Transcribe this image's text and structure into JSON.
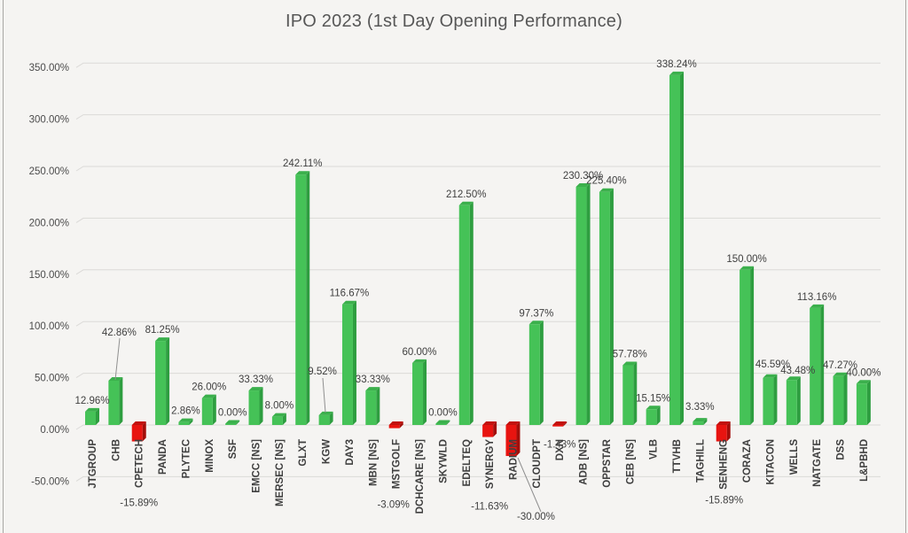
{
  "chart_data": {
    "type": "bar",
    "title": "IPO 2023 (1st Day Opening Performance)",
    "categories": [
      "JTGROUP",
      "CHB",
      "CPETECH",
      "PANDA",
      "PLYTEC",
      "MINOX",
      "SSF",
      "EMCC [NS]",
      "MERSEC [NS]",
      "GLXT",
      "KGW",
      "DAY3",
      "MBN [NS]",
      "MSTGOLF",
      "DCHCARE [NS]",
      "SKYWLD",
      "EDELTEQ",
      "SYNERGY",
      "RADIUM",
      "CLOUDPT",
      "DXN",
      "ADB [NS]",
      "OPPSTAR",
      "CEB [NS]",
      "VLB",
      "TTVHB",
      "TAGHILL",
      "SENHENG",
      "CORAZA",
      "KITACON",
      "WELLS",
      "NATGATE",
      "DSS",
      "L&PBHD"
    ],
    "values": [
      12.96,
      42.86,
      -15.89,
      81.25,
      2.86,
      26.0,
      0.0,
      33.33,
      8.0,
      242.11,
      9.52,
      116.67,
      33.33,
      -3.09,
      60.0,
      0.0,
      212.5,
      -11.63,
      -30.0,
      97.37,
      -1.43,
      230.3,
      225.4,
      57.78,
      15.15,
      338.24,
      3.33,
      -15.89,
      150.0,
      45.59,
      43.48,
      113.16,
      47.27,
      40.0
    ],
    "labels": [
      "12.96%",
      "42.86%",
      "-15.89%",
      "81.25%",
      "2.86%",
      "26.00%",
      "0.00%",
      "33.33%",
      "8.00%",
      "242.11%",
      "9.52%",
      "116.67%",
      "33.33%",
      "-3.09%",
      "60.00%",
      "0.00%",
      "212.50%",
      "-11.63%",
      "-30.00%",
      "97.37%",
      "-1.43%",
      "230.30%",
      "225.40%",
      "57.78%",
      "15.15%",
      "338.24%",
      "3.33%",
      "-15.89%",
      "150.00%",
      "45.59%",
      "43.48%",
      "113.16%",
      "47.27%",
      "40.00%"
    ],
    "xlabel": "",
    "ylabel": "",
    "ylim": [
      -50,
      350
    ],
    "ytick_step": 50,
    "ytick_labels": [
      "350.00%",
      "300.00%",
      "250.00%",
      "200.00%",
      "150.00%",
      "100.00%",
      "50.00%",
      "0.00%",
      "-50.00%"
    ],
    "grid": true,
    "legend": "none",
    "style": "3d-bar",
    "colors": {
      "positive_front": "#45c257",
      "positive_side": "#2e9e40",
      "positive_top": "#3bb04c",
      "negative_front": "#e81410",
      "negative_side": "#a30e0a",
      "negative_top": "#c2120e",
      "gridline": "#dbdad8",
      "leader_line": "#8f8f8f"
    },
    "label_offsets": {
      "CHB": [
        4,
        -42
      ],
      "KGW": [
        -4,
        -37
      ],
      "TAGHILL": [
        0,
        -4
      ],
      "KITACON": [
        3,
        -3
      ],
      "WELLS": [
        5,
        2
      ],
      "CPETECH": [
        0,
        57
      ],
      "MSTGOLF": [
        -3,
        74
      ],
      "SYNERGY": [
        0,
        66
      ],
      "RADIUM": [
        26,
        56
      ],
      "DXN": [
        0,
        8
      ],
      "SENHENG": [
        1,
        54
      ]
    },
    "leader_lines": {
      "CHB": [
        135,
        382,
        130,
        429
      ],
      "KGW": [
        364,
        427,
        367,
        466
      ],
      "RADIUM": [
        584,
        517,
        610,
        578
      ]
    }
  }
}
